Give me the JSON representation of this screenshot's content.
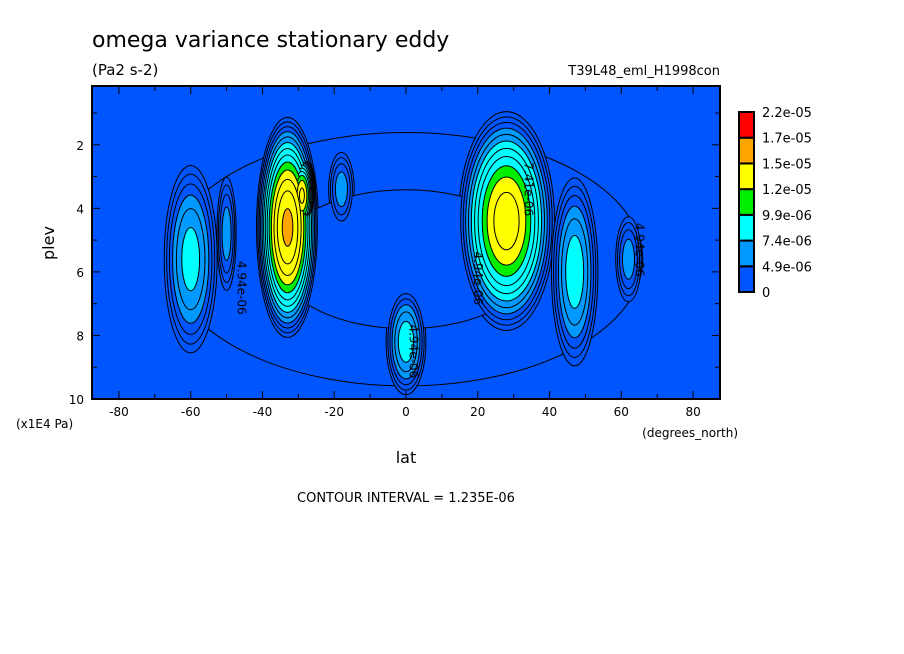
{
  "chart_data": {
    "type": "contour",
    "title": "omega variance stationary eddy",
    "units": "(Pa2 s-2)",
    "dataset": "T39L48_eml_H1998con",
    "xlabel": "lat",
    "xunits": "(degrees_north)",
    "ylabel": "plev",
    "yunits": "(x1E4 Pa)",
    "xlim": [
      -87.5,
      87.5
    ],
    "ylim": [
      0.15,
      10
    ],
    "y_reversed": true,
    "xticks": [
      "-80",
      "-60",
      "-40",
      "-20",
      "0",
      "20",
      "40",
      "60",
      "80"
    ],
    "yticks": [
      "2",
      "4",
      "6",
      "8",
      "10"
    ],
    "contour_interval_text": "CONTOUR INTERVAL = 1.235E-06",
    "contour_interval": 1.235e-06,
    "legend": {
      "labels": [
        "2.2e-05",
        "1.7e-05",
        "1.5e-05",
        "1.2e-05",
        "9.9e-06",
        "7.4e-06",
        "4.9e-06",
        "0"
      ],
      "bounds": [
        0,
        4.9e-06,
        7.4e-06,
        9.9e-06,
        1.2e-05,
        1.5e-05,
        1.7e-05,
        2.2e-05
      ],
      "colors": [
        "#0055ff",
        "#0099ff",
        "#00ffff",
        "#00ee00",
        "#ffff00",
        "#ffa500",
        "#ff0000"
      ]
    },
    "features": [
      {
        "lat": 0,
        "plev": 5.6,
        "dlat": 86,
        "dplev": 5.2,
        "peak": 3e-06
      },
      {
        "lat": -60,
        "plev": 5.6,
        "dlat": 8,
        "dplev": 3.2,
        "peak": 8.2e-06
      },
      {
        "lat": -50,
        "plev": 4.8,
        "dlat": 3,
        "dplev": 2.0,
        "peak": 6e-06
      },
      {
        "lat": -33,
        "plev": 4.6,
        "dlat": 9,
        "dplev": 3.6,
        "peak": 1.65e-05
      },
      {
        "lat": -29,
        "plev": 3.6,
        "dlat": 4,
        "dplev": 1.4,
        "peak": 1.4e-05
      },
      {
        "lat": -18,
        "plev": 3.4,
        "dlat": 4,
        "dplev": 1.3,
        "peak": 6e-06
      },
      {
        "lat": 0,
        "plev": 8.2,
        "dlat": 6,
        "dplev": 1.8,
        "peak": 8.5e-06
      },
      {
        "lat": 28,
        "plev": 4.4,
        "dlat": 14,
        "dplev": 3.6,
        "peak": 1.45e-05
      },
      {
        "lat": 47,
        "plev": 6.0,
        "dlat": 7,
        "dplev": 3.2,
        "peak": 8.5e-06
      },
      {
        "lat": 62,
        "plev": 5.6,
        "dlat": 4,
        "dplev": 1.5,
        "peak": 6e-06
      }
    ],
    "annotations": [
      {
        "text": "4.94e-06",
        "lat": -47,
        "plev": 6.5
      },
      {
        "text": "4.94e-06",
        "lat": 1,
        "plev": 8.5
      },
      {
        "text": "4.94e-06",
        "lat": 19,
        "plev": 6.2
      },
      {
        "text": "4.94e-06",
        "lat": 64,
        "plev": 5.3
      },
      {
        "text": "7.41e-06",
        "lat": 33,
        "plev": 3.4
      }
    ]
  }
}
